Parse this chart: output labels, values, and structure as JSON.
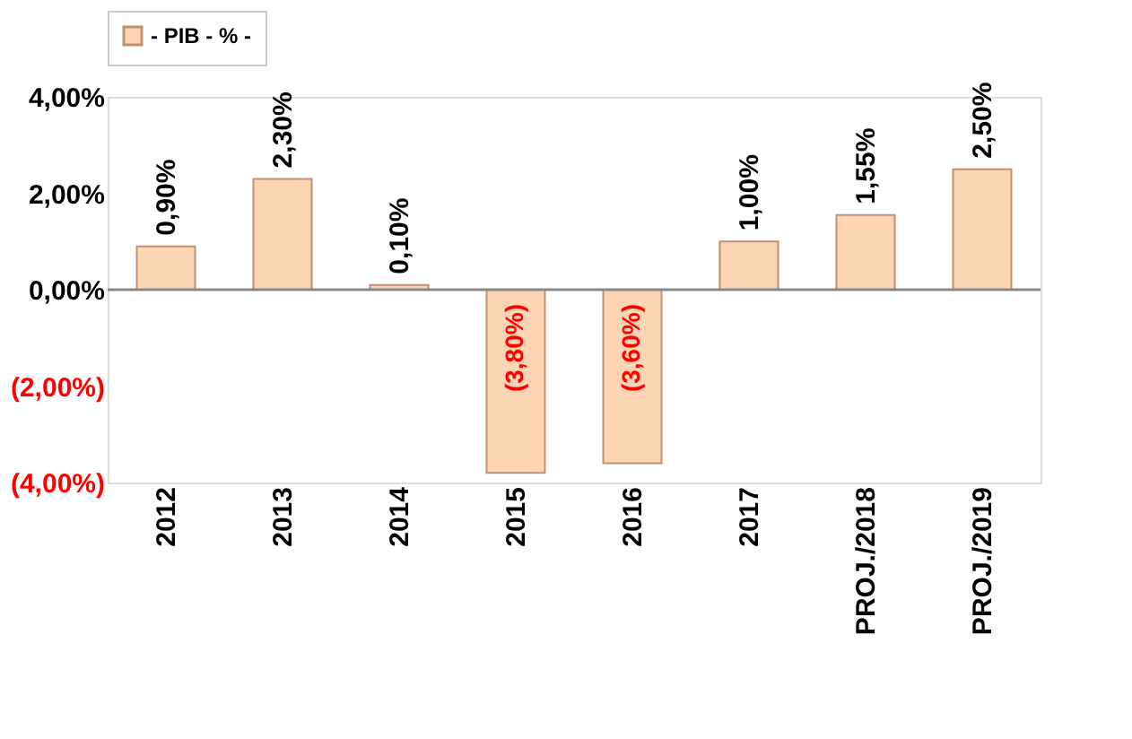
{
  "chart_data": {
    "type": "bar",
    "categories": [
      "2012",
      "2013",
      "2014",
      "2015",
      "2016",
      "2017",
      "PROJ./2018",
      "PROJ./2019"
    ],
    "series": [
      {
        "name": "- PIB - % -",
        "color": "#fcd5b4",
        "values": [
          0.9,
          2.3,
          0.1,
          -3.8,
          -3.6,
          1.0,
          1.55,
          2.5
        ],
        "value_labels": [
          "0,90%",
          "2,30%",
          "0,10%",
          "(3,80%)",
          "(3,60%)",
          "1,00%",
          "1,55%",
          "2,50%"
        ]
      }
    ],
    "ylim": [
      -4,
      4
    ],
    "yticks": [
      {
        "value": -4,
        "label": "(4,00%)"
      },
      {
        "value": -2,
        "label": "(2,00%)"
      },
      {
        "value": 0,
        "label": "0,00%"
      },
      {
        "value": 2,
        "label": "2,00%"
      },
      {
        "value": 4,
        "label": "4,00%"
      }
    ],
    "ref_lines": [
      {
        "axis": "y",
        "value": 0
      }
    ],
    "grid": false,
    "legend": "top"
  }
}
